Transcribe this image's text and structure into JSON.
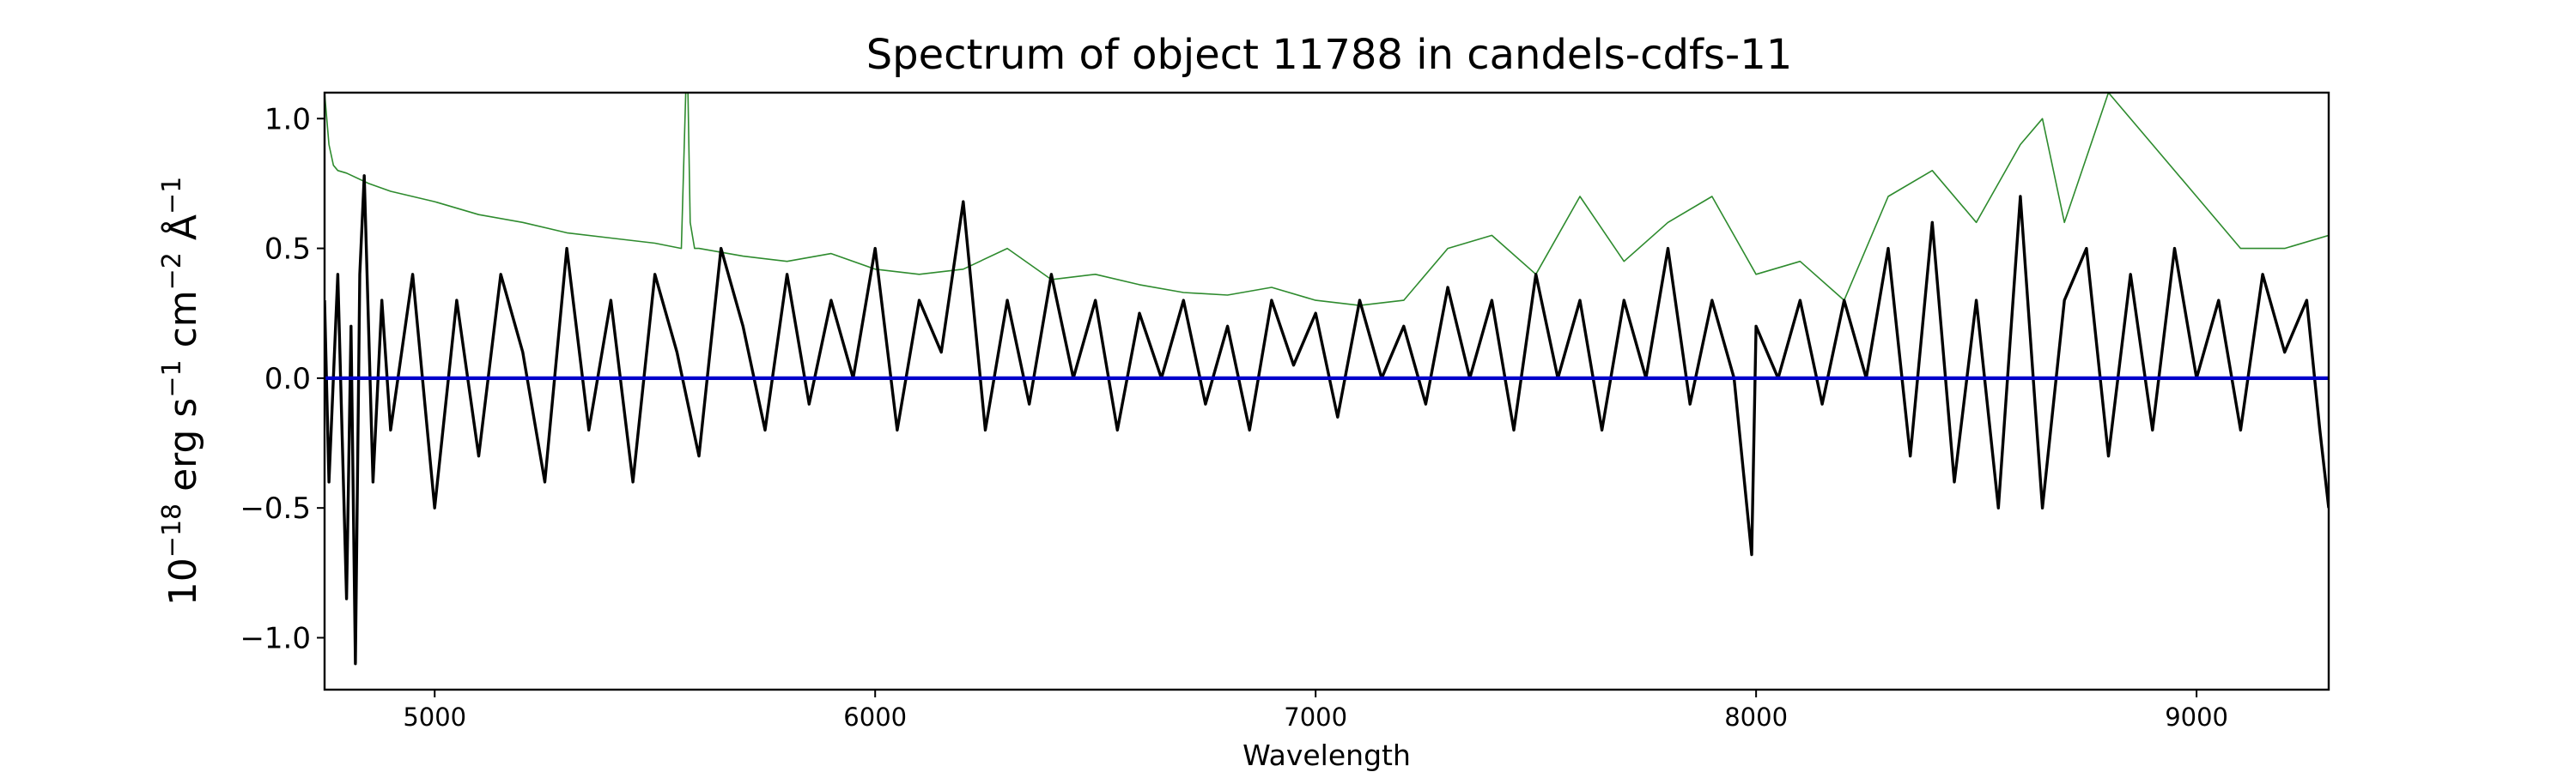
{
  "chart_data": {
    "type": "line",
    "title": "Spectrum of object 11788 in candels-cdfs-11",
    "xlabel": "Wavelength",
    "ylabel": {
      "base": "10",
      "exp1": "−18",
      "unit1": " erg s",
      "exp2": "−1",
      "unit2": " cm",
      "exp3": "−2",
      "unit3": " Å",
      "exp4": "−1"
    },
    "xlim": [
      4750,
      9300
    ],
    "ylim": [
      -1.2,
      1.1
    ],
    "xticks": [
      5000,
      6000,
      7000,
      8000,
      9000
    ],
    "xtick_labels": [
      "5000",
      "6000",
      "7000",
      "8000",
      "9000"
    ],
    "yticks": [
      -1.0,
      -0.5,
      0.0,
      0.5,
      1.0
    ],
    "ytick_labels": [
      "−1.0",
      "−0.5",
      "0.0",
      "0.5",
      "1.0"
    ],
    "grid": false,
    "series": [
      {
        "role": "noise",
        "color": "#2e8b2e",
        "x": [
          4750,
          4760,
          4770,
          4780,
          4800,
          4850,
          4900,
          5000,
          5100,
          5200,
          5300,
          5400,
          5500,
          5560,
          5570,
          5575,
          5580,
          5590,
          5600,
          5700,
          5800,
          5900,
          6000,
          6100,
          6200,
          6300,
          6400,
          6500,
          6600,
          6700,
          6800,
          6900,
          7000,
          7100,
          7200,
          7300,
          7400,
          7500,
          7600,
          7700,
          7800,
          7900,
          8000,
          8100,
          8200,
          8300,
          8400,
          8500,
          8600,
          8650,
          8700,
          8800,
          8900,
          9000,
          9100,
          9200,
          9300
        ],
        "y": [
          1.1,
          0.9,
          0.82,
          0.8,
          0.79,
          0.75,
          0.72,
          0.68,
          0.63,
          0.6,
          0.56,
          0.54,
          0.52,
          0.5,
          1.1,
          1.1,
          0.6,
          0.5,
          0.5,
          0.47,
          0.45,
          0.48,
          0.42,
          0.4,
          0.42,
          0.5,
          0.38,
          0.4,
          0.36,
          0.33,
          0.32,
          0.35,
          0.3,
          0.28,
          0.3,
          0.5,
          0.55,
          0.4,
          0.7,
          0.45,
          0.6,
          0.7,
          0.4,
          0.45,
          0.3,
          0.7,
          0.8,
          0.6,
          0.9,
          1.0,
          0.6,
          1.1,
          0.9,
          0.7,
          0.5,
          0.5,
          0.55
        ]
      },
      {
        "role": "flux",
        "color": "#000000",
        "x": [
          4750,
          4760,
          4780,
          4800,
          4810,
          4820,
          4830,
          4840,
          4860,
          4880,
          4900,
          4950,
          5000,
          5050,
          5100,
          5150,
          5200,
          5250,
          5300,
          5350,
          5400,
          5450,
          5500,
          5550,
          5600,
          5650,
          5700,
          5750,
          5800,
          5850,
          5900,
          5950,
          6000,
          6050,
          6100,
          6150,
          6200,
          6250,
          6300,
          6350,
          6400,
          6450,
          6500,
          6550,
          6600,
          6650,
          6700,
          6750,
          6800,
          6850,
          6900,
          6950,
          7000,
          7050,
          7100,
          7150,
          7200,
          7250,
          7300,
          7350,
          7400,
          7450,
          7500,
          7550,
          7600,
          7650,
          7700,
          7750,
          7800,
          7850,
          7900,
          7950,
          7990,
          8000,
          8050,
          8100,
          8150,
          8200,
          8250,
          8300,
          8350,
          8400,
          8450,
          8500,
          8550,
          8600,
          8650,
          8700,
          8750,
          8800,
          8850,
          8900,
          8950,
          9000,
          9050,
          9100,
          9150,
          9200,
          9250,
          9280,
          9300
        ],
        "y": [
          0.3,
          -0.4,
          0.4,
          -0.85,
          0.2,
          -1.1,
          0.4,
          0.78,
          -0.4,
          0.3,
          -0.2,
          0.4,
          -0.5,
          0.3,
          -0.3,
          0.4,
          0.1,
          -0.4,
          0.5,
          -0.2,
          0.3,
          -0.4,
          0.4,
          0.1,
          -0.3,
          0.5,
          0.2,
          -0.2,
          0.4,
          -0.1,
          0.3,
          0.0,
          0.5,
          -0.2,
          0.3,
          0.1,
          0.68,
          -0.2,
          0.3,
          -0.1,
          0.4,
          0.0,
          0.3,
          -0.2,
          0.25,
          0.0,
          0.3,
          -0.1,
          0.2,
          -0.2,
          0.3,
          0.05,
          0.25,
          -0.15,
          0.3,
          0.0,
          0.2,
          -0.1,
          0.35,
          0.0,
          0.3,
          -0.2,
          0.4,
          0.0,
          0.3,
          -0.2,
          0.3,
          0.0,
          0.5,
          -0.1,
          0.3,
          0.0,
          -0.68,
          0.2,
          0.0,
          0.3,
          -0.1,
          0.3,
          0.0,
          0.5,
          -0.3,
          0.6,
          -0.4,
          0.3,
          -0.5,
          0.7,
          -0.5,
          0.3,
          0.5,
          -0.3,
          0.4,
          -0.2,
          0.5,
          0.0,
          0.3,
          -0.2,
          0.4,
          0.1,
          0.3,
          -0.2,
          -0.5
        ]
      },
      {
        "role": "zero-line",
        "color": "#0000cc",
        "x": [
          4750,
          9300
        ],
        "y": [
          0.0,
          0.0
        ]
      }
    ]
  }
}
